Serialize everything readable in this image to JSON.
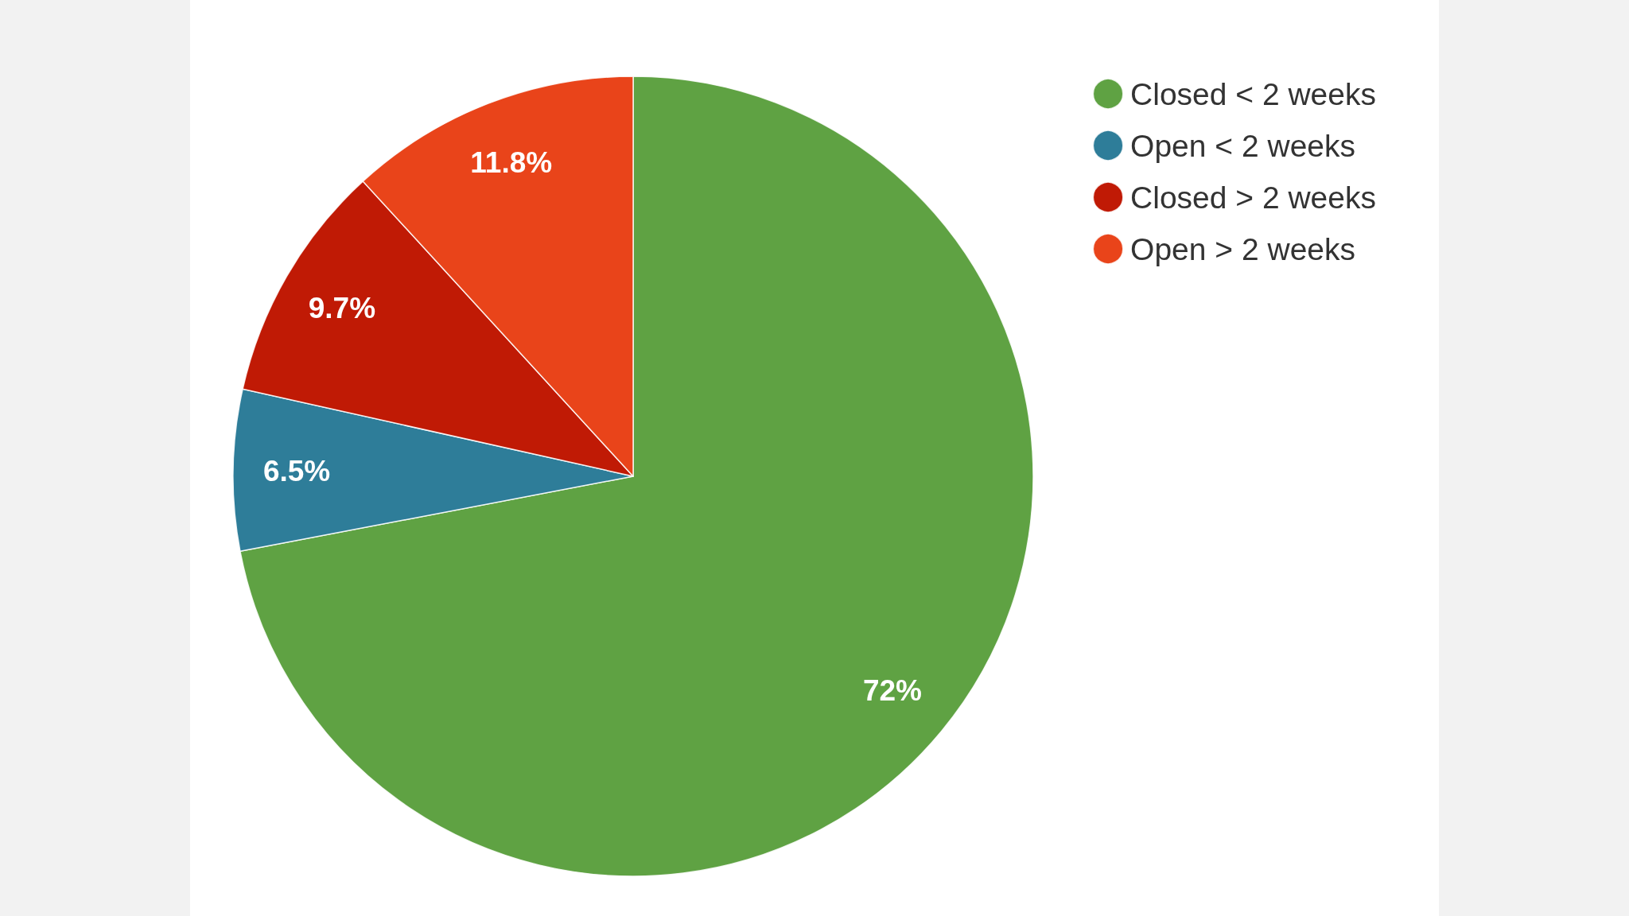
{
  "chart_data": {
    "type": "pie",
    "categories": [
      "Closed < 2 weeks",
      "Open < 2 weeks",
      "Closed > 2 weeks",
      "Open > 2 weeks"
    ],
    "values": [
      72,
      6.5,
      9.7,
      11.8
    ],
    "colors": [
      "#5fa243",
      "#2e7d99",
      "#c01a05",
      "#e9441a"
    ],
    "value_labels": [
      "72%",
      "6.5%",
      "9.7%",
      "11.8%"
    ],
    "legend": "top right"
  }
}
